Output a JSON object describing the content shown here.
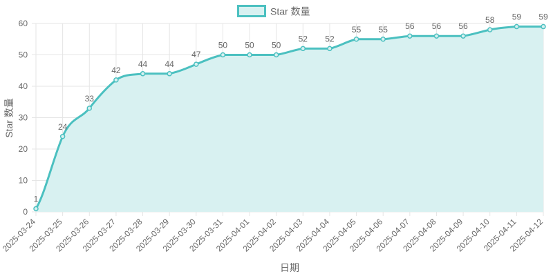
{
  "chart_data": {
    "type": "area",
    "x": [
      "2025-03-24",
      "2025-03-25",
      "2025-03-26",
      "2025-03-27",
      "2025-03-28",
      "2025-03-29",
      "2025-03-30",
      "2025-03-31",
      "2025-04-01",
      "2025-04-02",
      "2025-04-03",
      "2025-04-04",
      "2025-04-05",
      "2025-04-06",
      "2025-04-07",
      "2025-04-08",
      "2025-04-09",
      "2025-04-10",
      "2025-04-11",
      "2025-04-12"
    ],
    "series": [
      {
        "name": "Star 数量",
        "values": [
          1,
          24,
          33,
          42,
          44,
          44,
          47,
          50,
          50,
          50,
          52,
          52,
          55,
          55,
          56,
          56,
          56,
          58,
          59,
          59
        ]
      }
    ],
    "title": "",
    "xlabel": "日期",
    "ylabel": "Star 数量",
    "ylim": [
      0,
      60
    ],
    "yticks": [
      0,
      10,
      20,
      30,
      40,
      50,
      60
    ],
    "grid": true,
    "legend": "top-center",
    "data_labels": true,
    "colors": {
      "line": "#4bc0c0",
      "fill": "#d8f1f1",
      "grid": "#e5e5e5",
      "text": "#666666"
    }
  }
}
